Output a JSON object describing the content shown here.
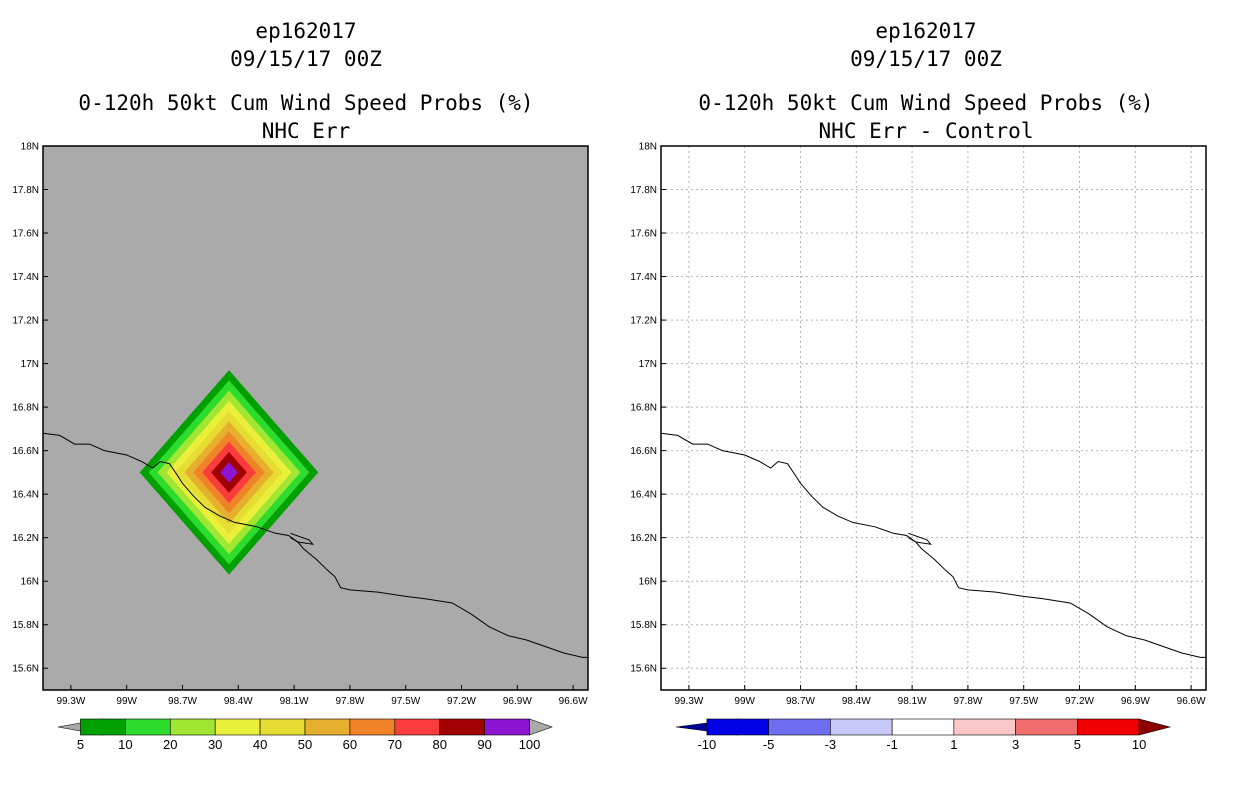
{
  "chart_data": [
    {
      "type": "heatmap",
      "title_lines": [
        "ep162017",
        "09/15/17 00Z",
        "0-120h 50kt Cum Wind Speed Probs (%)",
        "NHC Err"
      ],
      "lon_range": [
        -99.45,
        -96.52
      ],
      "lat_range": [
        15.5,
        18.0
      ],
      "x_ticks": [
        -99.3,
        -99.0,
        -98.7,
        -98.4,
        -98.1,
        -97.8,
        -97.5,
        -97.2,
        -96.9,
        -96.6
      ],
      "x_tick_labels": [
        "99.3W",
        "99W",
        "98.7W",
        "98.4W",
        "98.1W",
        "97.8W",
        "97.5W",
        "97.2W",
        "96.9W",
        "96.6W"
      ],
      "y_ticks": [
        15.6,
        15.8,
        16.0,
        16.2,
        16.4,
        16.6,
        16.8,
        17.0,
        17.2,
        17.4,
        17.6,
        17.8,
        18.0
      ],
      "y_tick_labels": [
        "15.6N",
        "15.8N",
        "16N",
        "16.2N",
        "16.4N",
        "16.6N",
        "16.8N",
        "17N",
        "17.2N",
        "17.4N",
        "17.6N",
        "17.8N",
        "18N"
      ],
      "background": "#aaaaaa",
      "grid": false,
      "field": {
        "shape": "diamond",
        "center_lon": -98.45,
        "center_lat": 16.5,
        "half_width_lon": 0.48,
        "half_height_lat": 0.47,
        "max_value": 100
      },
      "colorbar": {
        "levels": [
          5,
          10,
          20,
          30,
          40,
          50,
          60,
          70,
          80,
          90,
          100
        ],
        "labels": [
          "5",
          "10",
          "20",
          "30",
          "40",
          "50",
          "60",
          "70",
          "80",
          "90",
          "100"
        ],
        "colors": [
          "#00a000",
          "#2ddc2d",
          "#a0e632",
          "#eaf03a",
          "#e6dc32",
          "#e6af2d",
          "#f08228",
          "#fa3c3c",
          "#a00000",
          "#8c14d2"
        ],
        "extend_color": "#aaaaaa"
      }
    },
    {
      "type": "heatmap",
      "title_lines": [
        "ep162017",
        "09/15/17 00Z",
        "0-120h 50kt Cum Wind Speed Probs (%)",
        "NHC Err - Control"
      ],
      "lon_range": [
        -99.45,
        -96.52
      ],
      "lat_range": [
        15.5,
        18.0
      ],
      "x_ticks": [
        -99.3,
        -99.0,
        -98.7,
        -98.4,
        -98.1,
        -97.8,
        -97.5,
        -97.2,
        -96.9,
        -96.6
      ],
      "x_tick_labels": [
        "99.3W",
        "99W",
        "98.7W",
        "98.4W",
        "98.1W",
        "97.8W",
        "97.5W",
        "97.2W",
        "96.9W",
        "96.6W"
      ],
      "y_ticks": [
        15.6,
        15.8,
        16.0,
        16.2,
        16.4,
        16.6,
        16.8,
        17.0,
        17.2,
        17.4,
        17.6,
        17.8,
        18.0
      ],
      "y_tick_labels": [
        "15.6N",
        "15.8N",
        "16N",
        "16.2N",
        "16.4N",
        "16.6N",
        "16.8N",
        "17N",
        "17.2N",
        "17.4N",
        "17.6N",
        "17.8N",
        "18N"
      ],
      "background": "#ffffff",
      "grid": true,
      "colorbar": {
        "levels": [
          -10,
          -5,
          -3,
          -1,
          1,
          3,
          5,
          10
        ],
        "labels": [
          "-10",
          "-5",
          "-3",
          "-1",
          "1",
          "3",
          "5",
          "10"
        ],
        "colors": [
          "#0000e6",
          "#6e6ef0",
          "#c8c8fa",
          "#ffffff",
          "#fac8c8",
          "#f06e6e",
          "#f00000"
        ],
        "extend_low_color": "#000096",
        "extend_high_color": "#8c0000"
      }
    }
  ],
  "coastline": [
    [
      -99.45,
      16.68
    ],
    [
      -99.36,
      16.67
    ],
    [
      -99.28,
      16.63
    ],
    [
      -99.2,
      16.63
    ],
    [
      -99.12,
      16.6
    ],
    [
      -99.0,
      16.58
    ],
    [
      -98.92,
      16.55
    ],
    [
      -98.86,
      16.52
    ],
    [
      -98.82,
      16.55
    ],
    [
      -98.77,
      16.54
    ],
    [
      -98.73,
      16.49
    ],
    [
      -98.7,
      16.45
    ],
    [
      -98.64,
      16.39
    ],
    [
      -98.58,
      16.34
    ],
    [
      -98.5,
      16.3
    ],
    [
      -98.42,
      16.27
    ],
    [
      -98.3,
      16.25
    ],
    [
      -98.2,
      16.22
    ],
    [
      -98.13,
      16.21
    ],
    [
      -98.08,
      16.18
    ],
    [
      -98.05,
      16.15
    ],
    [
      -97.98,
      16.1
    ],
    [
      -97.92,
      16.05
    ],
    [
      -97.88,
      16.02
    ],
    [
      -97.85,
      15.97
    ],
    [
      -97.8,
      15.96
    ],
    [
      -97.65,
      15.95
    ],
    [
      -97.5,
      15.93
    ],
    [
      -97.4,
      15.92
    ],
    [
      -97.25,
      15.9
    ],
    [
      -97.15,
      15.85
    ],
    [
      -97.05,
      15.79
    ],
    [
      -96.95,
      15.75
    ],
    [
      -96.85,
      15.73
    ],
    [
      -96.75,
      15.7
    ],
    [
      -96.65,
      15.67
    ],
    [
      -96.55,
      15.65
    ],
    [
      -96.52,
      15.65
    ]
  ],
  "coast_islet": [
    [
      -98.12,
      16.22
    ],
    [
      -98.02,
      16.19
    ],
    [
      -98.0,
      16.17
    ],
    [
      -98.08,
      16.18
    ],
    [
      -98.12,
      16.2
    ]
  ]
}
